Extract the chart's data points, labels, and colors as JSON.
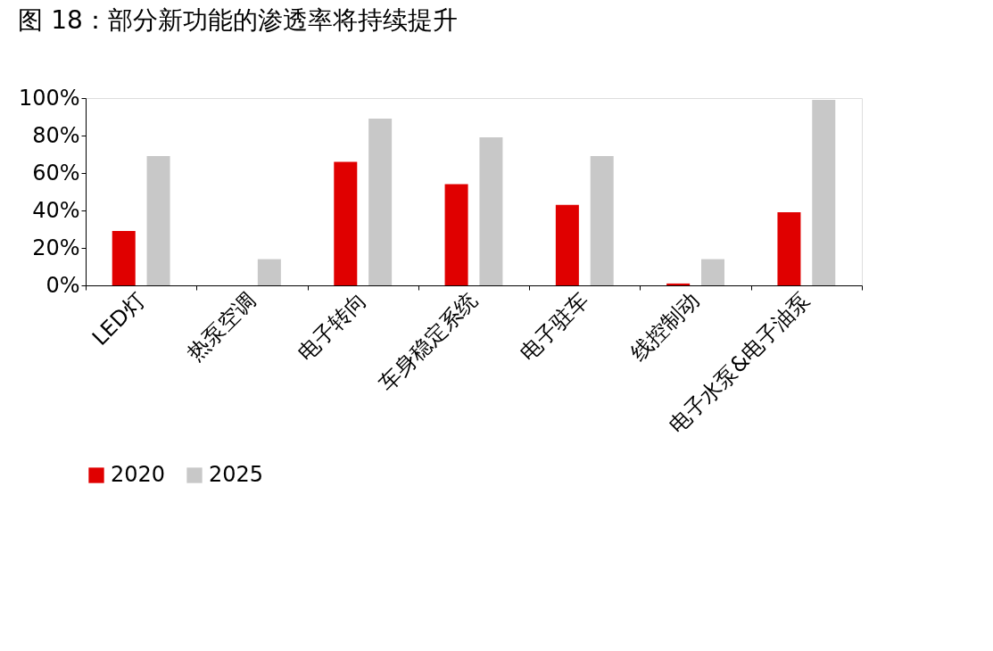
{
  "chart_data": {
    "type": "bar",
    "title": "图 18：部分新功能的渗透率将持续提升",
    "categories": [
      "LED灯",
      "热泵空调",
      "电子转向",
      "车身稳定系统",
      "电子驻车",
      "线控制动",
      "电子水泵&电子油泵"
    ],
    "series": [
      {
        "name": "2020",
        "color": "#e00000",
        "values": [
          29,
          null,
          66,
          54,
          43,
          1,
          39
        ]
      },
      {
        "name": "2025",
        "color": "#c8c8c8",
        "values": [
          69,
          14,
          89,
          79,
          69,
          14,
          99
        ]
      }
    ],
    "ylim": [
      0,
      100
    ],
    "yticks": [
      {
        "value": 0,
        "label": "0%"
      },
      {
        "value": 20,
        "label": "20%"
      },
      {
        "value": 40,
        "label": "40%"
      },
      {
        "value": 60,
        "label": "60%"
      },
      {
        "value": 80,
        "label": "80%"
      },
      {
        "value": 100,
        "label": "100%"
      }
    ],
    "grid": false,
    "legend": "bottom"
  }
}
